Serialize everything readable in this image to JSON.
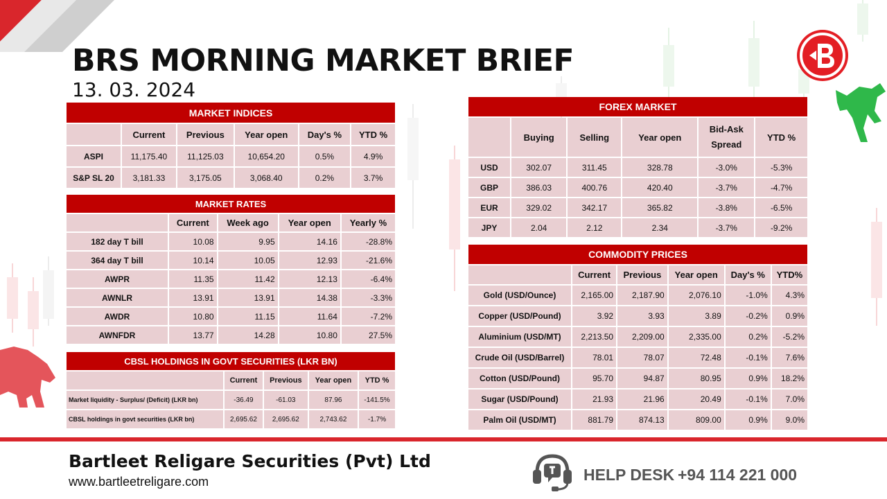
{
  "header": {
    "title": "BRS MORNING MARKET BRIEF",
    "date": "13. 03. 2024"
  },
  "logo_icon": "brs-b-logo-icon",
  "colors": {
    "accent": "#c00000",
    "cell": "#e9cfd2",
    "footer_accent": "#d9262c"
  },
  "market_indices": {
    "title": "MARKET INDICES",
    "headers": [
      "",
      "Current",
      "Previous",
      "Year open",
      "Day's %",
      "YTD %"
    ],
    "rows": [
      [
        "ASPI",
        "11,175.40",
        "11,125.03",
        "10,654.20",
        "0.5%",
        "4.9%"
      ],
      [
        "S&P SL 20",
        "3,181.33",
        "3,175.05",
        "3,068.40",
        "0.2%",
        "3.7%"
      ]
    ]
  },
  "market_rates": {
    "title": "MARKET RATES",
    "headers": [
      "",
      "Current",
      "Week ago",
      "Year open",
      "Yearly %"
    ],
    "rows": [
      [
        "182 day T bill",
        "10.08",
        "9.95",
        "14.16",
        "-28.8%"
      ],
      [
        "364 day T bill",
        "10.14",
        "10.05",
        "12.93",
        "-21.6%"
      ],
      [
        "AWPR",
        "11.35",
        "11.42",
        "12.13",
        "-6.4%"
      ],
      [
        "AWNLR",
        "13.91",
        "13.91",
        "14.38",
        "-3.3%"
      ],
      [
        "AWDR",
        "10.80",
        "11.15",
        "11.64",
        "-7.2%"
      ],
      [
        "AWNFDR",
        "13.77",
        "14.28",
        "10.80",
        "27.5%"
      ]
    ]
  },
  "cbsl_holdings": {
    "title": "CBSL HOLDINGS IN GOVT SECURITIES (LKR BN)",
    "headers": [
      "",
      "Current",
      "Previous",
      "Year open",
      "YTD %"
    ],
    "rows": [
      [
        "Market liquidity - Surplus/ (Deficit) (LKR bn)",
        "-36.49",
        "-61.03",
        "87.96",
        "-141.5%"
      ],
      [
        "CBSL holdings in govt securities (LKR bn)",
        "2,695.62",
        "2,695.62",
        "2,743.62",
        "-1.7%"
      ]
    ]
  },
  "forex_market": {
    "title": "FOREX MARKET",
    "headers": [
      "",
      "Buying",
      "Selling",
      "Year open",
      "Bid-Ask Spread",
      "YTD %"
    ],
    "rows": [
      [
        "USD",
        "302.07",
        "311.45",
        "328.78",
        "-3.0%",
        "-5.3%"
      ],
      [
        "GBP",
        "386.03",
        "400.76",
        "420.40",
        "-3.7%",
        "-4.7%"
      ],
      [
        "EUR",
        "329.02",
        "342.17",
        "365.82",
        "-3.8%",
        "-6.5%"
      ],
      [
        "JPY",
        "2.04",
        "2.12",
        "2.34",
        "-3.7%",
        "-9.2%"
      ]
    ]
  },
  "commodity_prices": {
    "title": "COMMODITY PRICES",
    "headers": [
      "",
      "Current",
      "Previous",
      "Year open",
      "Day's %",
      "YTD%"
    ],
    "rows": [
      [
        "Gold (USD/Ounce)",
        "2,165.00",
        "2,187.90",
        "2,076.10",
        "-1.0%",
        "4.3%"
      ],
      [
        "Copper (USD/Pound)",
        "3.92",
        "3.93",
        "3.89",
        "-0.2%",
        "0.9%"
      ],
      [
        "Aluminium (USD/MT)",
        "2,213.50",
        "2,209.00",
        "2,335.00",
        "0.2%",
        "-5.2%"
      ],
      [
        "Crude Oil (USD/Barrel)",
        "78.01",
        "78.07",
        "72.48",
        "-0.1%",
        "7.6%"
      ],
      [
        "Cotton (USD/Pound)",
        "95.70",
        "94.87",
        "80.95",
        "0.9%",
        "18.2%"
      ],
      [
        "Sugar (USD/Pound)",
        "21.93",
        "21.96",
        "20.49",
        "-0.1%",
        "7.0%"
      ],
      [
        "Palm Oil (USD/MT)",
        "881.79",
        "874.13",
        "809.00",
        "0.9%",
        "9.0%"
      ]
    ]
  },
  "footer": {
    "company": "Bartleet Religare Securities (Pvt) Ltd",
    "website": "www.bartleetreligare.com",
    "helpdesk_label": "HELP DESK",
    "phone": "+94 114 221 000",
    "helpdesk_icon": "headset-icon"
  },
  "decor": {
    "bull_icon": "bull-icon",
    "bear_icon": "bear-icon"
  }
}
